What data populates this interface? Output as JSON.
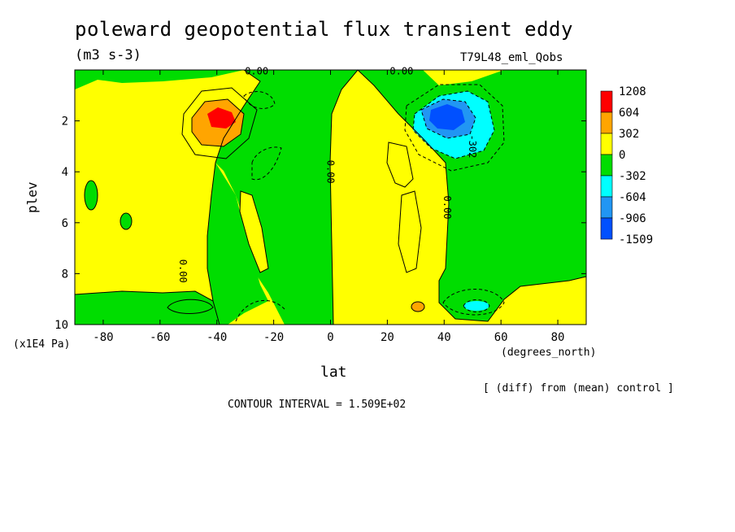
{
  "header": {
    "title": "poleward geopotential flux transient eddy",
    "units": "(m3 s-3)",
    "run": "T79L48_eml_Qobs",
    "diff_note": "[ (diff) from (mean) control ]",
    "contour_interval": "CONTOUR INTERVAL = 1.509E+02"
  },
  "chart_data": {
    "type": "heatmap",
    "title": "poleward geopotential flux transient eddy",
    "xlabel": "lat",
    "x_units": "(degrees_north)",
    "ylabel": "plev",
    "y_units": "(x1E4 Pa)",
    "xlim": [
      -90,
      90
    ],
    "ylim": [
      10,
      0
    ],
    "x_ticks": [
      -80,
      -60,
      -40,
      -20,
      0,
      20,
      40,
      60,
      80
    ],
    "y_ticks": [
      2,
      4,
      6,
      8,
      10
    ],
    "legend": {
      "placement": "right",
      "levels": [
        "1208",
        "604",
        "302",
        "0",
        "-302",
        "-604",
        "-906",
        "-1509"
      ],
      "colors": [
        "#ff0000",
        "#ffa500",
        "#ffff00",
        "#00dd00",
        "#00ffff",
        "#2196f3",
        "#0050ff"
      ]
    },
    "contour_labels": [
      {
        "text": "0.00",
        "lat": -26,
        "plev": 0.05
      },
      {
        "text": "0.00",
        "lat": 25,
        "plev": 0.05
      },
      {
        "text": "0.00",
        "lat": 0,
        "plev": 4.0
      },
      {
        "text": "0.00",
        "lat": 41,
        "plev": 5.4
      },
      {
        "text": "0.00",
        "lat": -52,
        "plev": 7.9
      },
      {
        "text": "-302",
        "lat": 50,
        "plev": 3.0
      }
    ],
    "features": [
      {
        "name": "southern-maximum",
        "lat": -40,
        "plev": 2.0,
        "value": 1208
      },
      {
        "name": "northern-minimum",
        "lat": 40,
        "plev": 2.0,
        "value": -1509
      },
      {
        "name": "surface-positive",
        "lat": 31,
        "plev": 9.2,
        "value": 302
      },
      {
        "name": "surface-negative",
        "lat": 50,
        "plev": 9.2,
        "value": -604
      }
    ]
  }
}
